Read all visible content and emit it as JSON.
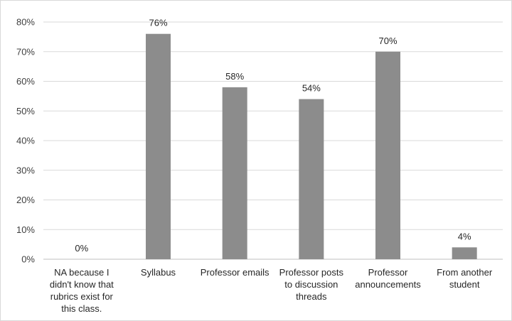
{
  "chart_data": {
    "type": "bar",
    "categories": [
      [
        "NA because I",
        "didn't know that",
        "rubrics exist for",
        "this class."
      ],
      [
        "Syllabus"
      ],
      [
        "Professor emails"
      ],
      [
        "Professor posts",
        "to discussion",
        "threads"
      ],
      [
        "Professor",
        "announcements"
      ],
      [
        "From another",
        "student"
      ]
    ],
    "values": [
      0,
      76,
      58,
      54,
      70,
      4
    ],
    "data_labels": [
      "0%",
      "76%",
      "58%",
      "54%",
      "70%",
      "4%"
    ],
    "y_ticks": [
      "0%",
      "10%",
      "20%",
      "30%",
      "40%",
      "50%",
      "60%",
      "70%",
      "80%"
    ],
    "ylim": [
      0,
      80
    ],
    "y_unit": "percent",
    "grid": true,
    "legend": "none",
    "bar_color": "#8c8c8c",
    "grid_color": "#d9d9d9",
    "text_color": "#262626"
  }
}
